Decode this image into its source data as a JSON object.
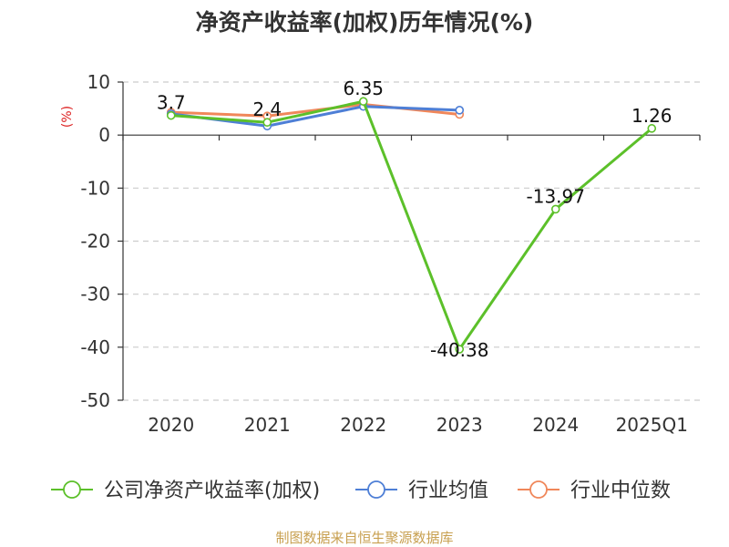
{
  "chart_data": {
    "type": "line",
    "title": "净资产收益率(加权)历年情况(%)",
    "ylabel": "(%)",
    "categories": [
      "2020",
      "2021",
      "2022",
      "2023",
      "2024",
      "2025Q1"
    ],
    "ylim": [
      -50,
      10
    ],
    "yticks": [
      10,
      0,
      -10,
      -20,
      -30,
      -40,
      -50
    ],
    "grid": true,
    "legend_position": "bottom",
    "series": [
      {
        "name": "公司净资产收益率(加权)",
        "color": "#5cc02a",
        "values": [
          3.7,
          2.4,
          6.35,
          -40.38,
          -13.97,
          1.26
        ],
        "labels": [
          "3.7",
          "2.4",
          "6.35",
          "-40.38",
          "-13.97",
          "1.26"
        ]
      },
      {
        "name": "行业均值",
        "color": "#4e7fd6",
        "values": [
          4.0,
          1.7,
          5.4,
          4.7,
          null,
          null
        ]
      },
      {
        "name": "行业中位数",
        "color": "#f0875a",
        "values": [
          4.3,
          3.6,
          5.8,
          3.9,
          null,
          null
        ]
      }
    ]
  },
  "source": "制图数据来自恒生聚源数据库"
}
